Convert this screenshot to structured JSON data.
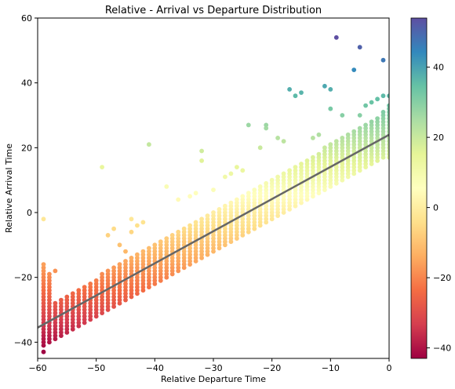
{
  "chart_data": {
    "type": "scatter",
    "title": "Relative - Arrival vs Departure Distribution",
    "xlabel": "Relative Departure Time",
    "ylabel": "Relative Arrival Time",
    "xlim": [
      -60,
      0
    ],
    "ylim": [
      -45,
      60
    ],
    "xticks": [
      -60,
      -50,
      -40,
      -30,
      -20,
      -10,
      0
    ],
    "yticks": [
      -40,
      -20,
      0,
      20,
      40,
      60
    ],
    "grid": false,
    "colormap": "Spectral",
    "colorbar": {
      "range": [
        -43,
        54
      ],
      "ticks": [
        -40,
        -20,
        0,
        20,
        40
      ]
    },
    "regression_line": {
      "x": [
        -60,
        0
      ],
      "y": [
        -35.5,
        24
      ],
      "color": "#666666"
    },
    "band_columns": [
      {
        "x": -59,
        "ymin": -41,
        "ymax": -16
      },
      {
        "x": -58,
        "ymin": -40,
        "ymax": -19
      },
      {
        "x": -57,
        "ymin": -39,
        "ymax": -28
      },
      {
        "x": -56,
        "ymin": -38,
        "ymax": -27
      },
      {
        "x": -55,
        "ymin": -37,
        "ymax": -26
      },
      {
        "x": -54,
        "ymin": -36,
        "ymax": -25
      },
      {
        "x": -53,
        "ymin": -35,
        "ymax": -24
      },
      {
        "x": -52,
        "ymin": -34,
        "ymax": -23
      },
      {
        "x": -51,
        "ymin": -33,
        "ymax": -22
      },
      {
        "x": -50,
        "ymin": -32,
        "ymax": -21
      },
      {
        "x": -49,
        "ymin": -31,
        "ymax": -19
      },
      {
        "x": -48,
        "ymin": -30,
        "ymax": -18
      },
      {
        "x": -47,
        "ymin": -29,
        "ymax": -17
      },
      {
        "x": -46,
        "ymin": -28,
        "ymax": -16
      },
      {
        "x": -45,
        "ymin": -27,
        "ymax": -15
      },
      {
        "x": -44,
        "ymin": -26,
        "ymax": -14
      },
      {
        "x": -43,
        "ymin": -25,
        "ymax": -13
      },
      {
        "x": -42,
        "ymin": -24,
        "ymax": -12
      },
      {
        "x": -41,
        "ymin": -23,
        "ymax": -11
      },
      {
        "x": -40,
        "ymin": -22,
        "ymax": -10
      },
      {
        "x": -39,
        "ymin": -21,
        "ymax": -9
      },
      {
        "x": -38,
        "ymin": -20,
        "ymax": -8
      },
      {
        "x": -37,
        "ymin": -19,
        "ymax": -7
      },
      {
        "x": -36,
        "ymin": -18,
        "ymax": -6
      },
      {
        "x": -35,
        "ymin": -17,
        "ymax": -5
      },
      {
        "x": -34,
        "ymin": -16,
        "ymax": -4
      },
      {
        "x": -33,
        "ymin": -15,
        "ymax": -3
      },
      {
        "x": -32,
        "ymin": -14,
        "ymax": -2
      },
      {
        "x": -31,
        "ymin": -13,
        "ymax": -1
      },
      {
        "x": -30,
        "ymin": -12,
        "ymax": 0
      },
      {
        "x": -29,
        "ymin": -11,
        "ymax": 1
      },
      {
        "x": -28,
        "ymin": -10,
        "ymax": 2
      },
      {
        "x": -27,
        "ymin": -9,
        "ymax": 3
      },
      {
        "x": -26,
        "ymin": -8,
        "ymax": 4
      },
      {
        "x": -25,
        "ymin": -7,
        "ymax": 5
      },
      {
        "x": -24,
        "ymin": -6,
        "ymax": 6
      },
      {
        "x": -23,
        "ymin": -5,
        "ymax": 7
      },
      {
        "x": -22,
        "ymin": -4,
        "ymax": 8
      },
      {
        "x": -21,
        "ymin": -3,
        "ymax": 9
      },
      {
        "x": -20,
        "ymin": -2,
        "ymax": 10
      },
      {
        "x": -19,
        "ymin": -1,
        "ymax": 11
      },
      {
        "x": -18,
        "ymin": 0,
        "ymax": 12
      },
      {
        "x": -17,
        "ymin": 1,
        "ymax": 13
      },
      {
        "x": -16,
        "ymin": 2,
        "ymax": 14
      },
      {
        "x": -15,
        "ymin": 3,
        "ymax": 15
      },
      {
        "x": -14,
        "ymin": 4,
        "ymax": 16
      },
      {
        "x": -13,
        "ymin": 5,
        "ymax": 17
      },
      {
        "x": -12,
        "ymin": 6,
        "ymax": 18
      },
      {
        "x": -11,
        "ymin": 7,
        "ymax": 20
      },
      {
        "x": -10,
        "ymin": 8,
        "ymax": 21
      },
      {
        "x": -9,
        "ymin": 9,
        "ymax": 22
      },
      {
        "x": -8,
        "ymin": 10,
        "ymax": 23
      },
      {
        "x": -7,
        "ymin": 11,
        "ymax": 24
      },
      {
        "x": -6,
        "ymin": 12,
        "ymax": 25
      },
      {
        "x": -5,
        "ymin": 13,
        "ymax": 26
      },
      {
        "x": -4,
        "ymin": 14,
        "ymax": 27
      },
      {
        "x": -3,
        "ymin": 15,
        "ymax": 28
      },
      {
        "x": -2,
        "ymin": 16,
        "ymax": 29
      },
      {
        "x": -1,
        "ymin": 17,
        "ymax": 31
      },
      {
        "x": 0,
        "ymin": 17,
        "ymax": 33
      }
    ],
    "outliers": [
      {
        "x": -59,
        "y": -2
      },
      {
        "x": -59,
        "y": -43
      },
      {
        "x": -57,
        "y": -18
      },
      {
        "x": -48,
        "y": -7
      },
      {
        "x": -47,
        "y": -5
      },
      {
        "x": -46,
        "y": -10
      },
      {
        "x": -45,
        "y": -12
      },
      {
        "x": -44,
        "y": -6
      },
      {
        "x": -43,
        "y": -4
      },
      {
        "x": -42,
        "y": -3
      },
      {
        "x": -44,
        "y": -2
      },
      {
        "x": -49,
        "y": 14
      },
      {
        "x": -41,
        "y": 21
      },
      {
        "x": -38,
        "y": 8
      },
      {
        "x": -36,
        "y": 4
      },
      {
        "x": -34,
        "y": 5
      },
      {
        "x": -33,
        "y": 6
      },
      {
        "x": -32,
        "y": 19
      },
      {
        "x": -32,
        "y": 16
      },
      {
        "x": -30,
        "y": 7
      },
      {
        "x": -28,
        "y": 11
      },
      {
        "x": -27,
        "y": 12
      },
      {
        "x": -26,
        "y": 14
      },
      {
        "x": -25,
        "y": 13
      },
      {
        "x": -24,
        "y": 27
      },
      {
        "x": -22,
        "y": 20
      },
      {
        "x": -21,
        "y": 27
      },
      {
        "x": -21,
        "y": 26
      },
      {
        "x": -19,
        "y": 23
      },
      {
        "x": -18,
        "y": 22
      },
      {
        "x": -17,
        "y": 38
      },
      {
        "x": -16,
        "y": 36
      },
      {
        "x": -15,
        "y": 37
      },
      {
        "x": -13,
        "y": 23
      },
      {
        "x": -12,
        "y": 24
      },
      {
        "x": -11,
        "y": 39
      },
      {
        "x": -10,
        "y": 38
      },
      {
        "x": -10,
        "y": 32
      },
      {
        "x": -9,
        "y": 54
      },
      {
        "x": -8,
        "y": 30
      },
      {
        "x": -6,
        "y": 44
      },
      {
        "x": -5,
        "y": 51
      },
      {
        "x": -5,
        "y": 30
      },
      {
        "x": -4,
        "y": 33
      },
      {
        "x": -3,
        "y": 34
      },
      {
        "x": -2,
        "y": 35
      },
      {
        "x": -1,
        "y": 47
      },
      {
        "x": -1,
        "y": 36
      },
      {
        "x": 0,
        "y": 36
      }
    ]
  }
}
